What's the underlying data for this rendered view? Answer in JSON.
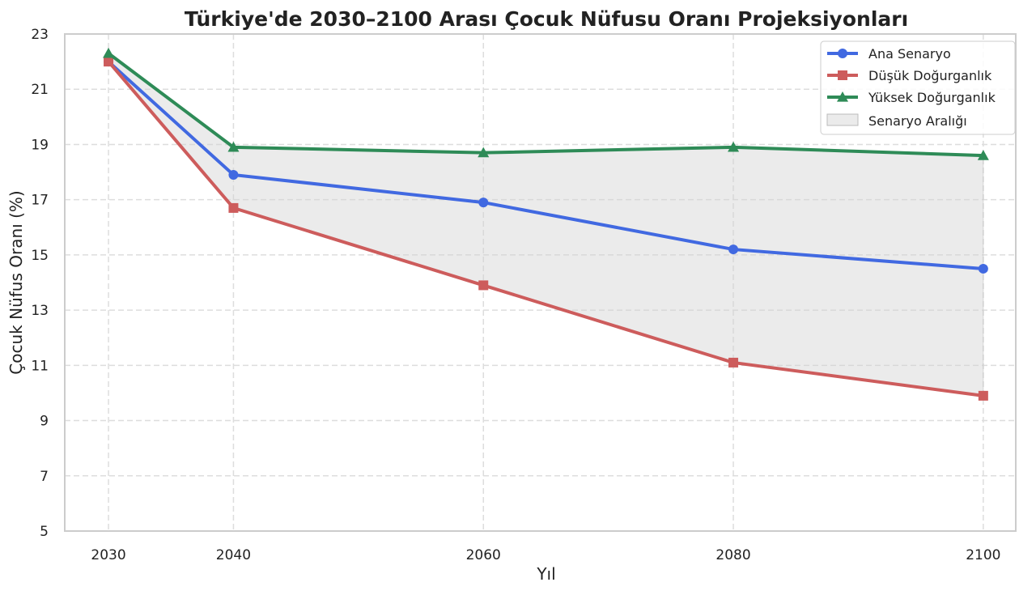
{
  "chart_data": {
    "type": "line",
    "title": "Türkiye'de 2030–2100 Arası Çocuk Nüfusu Oranı Projeksiyonları",
    "xlabel": "Yıl",
    "ylabel": "Çocuk Nüfus Oranı (%)",
    "x": [
      2030,
      2040,
      2060,
      2080,
      2100
    ],
    "xticks": [
      "2030",
      "2040",
      "2060",
      "2080",
      "2100"
    ],
    "yticks": [
      "5",
      "7",
      "9",
      "11",
      "13",
      "15",
      "17",
      "19",
      "21",
      "23"
    ],
    "xlim": [
      2026.5,
      2102.6
    ],
    "ylim": [
      5,
      23
    ],
    "grid": true,
    "legend_position": "top-right",
    "series": [
      {
        "name": "Ana Senaryo",
        "values": [
          22.0,
          17.9,
          16.9,
          15.2,
          14.5
        ],
        "color": "#4169e1",
        "marker": "circle"
      },
      {
        "name": "Düşük Doğurganlık",
        "values": [
          22.0,
          16.7,
          13.9,
          11.1,
          9.9
        ],
        "color": "#cd5c5c",
        "marker": "square"
      },
      {
        "name": "Yüksek Doğurganlık",
        "values": [
          22.3,
          18.9,
          18.7,
          18.9,
          18.6
        ],
        "color": "#2e8b57",
        "marker": "triangle"
      }
    ],
    "band": {
      "name": "Senaryo Aralığı",
      "color": "#d3d3d3"
    }
  }
}
